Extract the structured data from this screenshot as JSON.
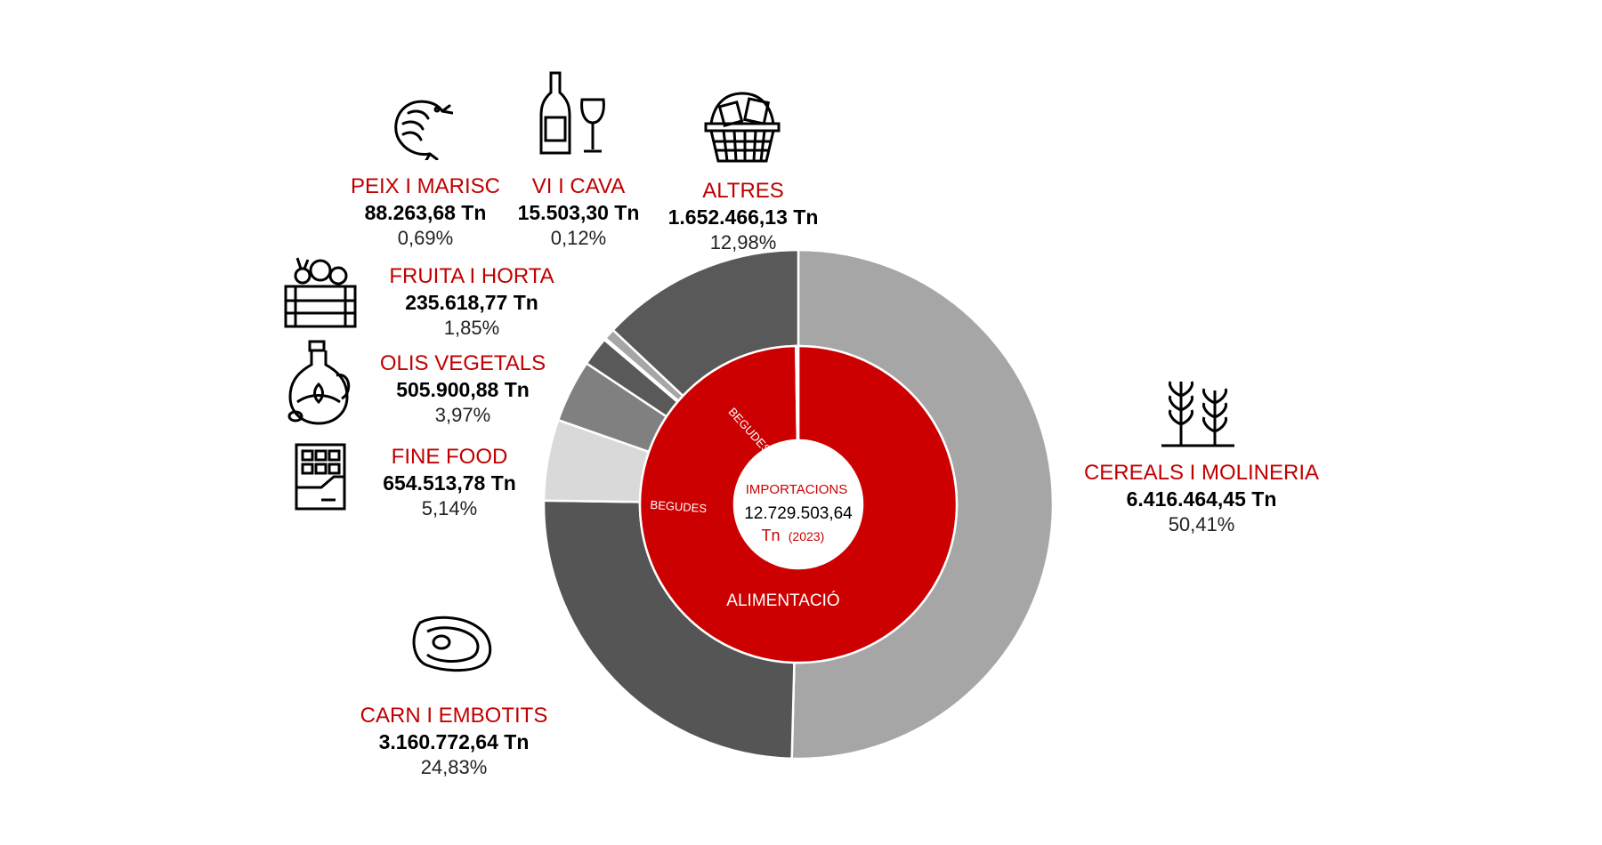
{
  "chart_data": {
    "type": "pie",
    "center": {
      "title": "IMPORTACIONS",
      "total": "12.729.503,64",
      "unit": "Tn",
      "year": "(2023)"
    },
    "inner_ring": [
      {
        "label": "ALIMENTACIÓ",
        "value": 12698736.66,
        "color": "#cc0000"
      },
      {
        "label": "BEGUDES",
        "value": 15503.3,
        "color": "#8b0000"
      },
      {
        "label": "",
        "value": 0,
        "color": "#cc0000"
      },
      {
        "label": "BEGUDES",
        "value": 15263.68,
        "color": "#8b0000"
      }
    ],
    "categories": [
      {
        "key": "cereals",
        "name": "CEREALS I MOLINERIA",
        "tonnes": "6.416.464,45 Tn",
        "percent": "50,41%",
        "value": 6416464.45,
        "color": "#a6a6a6",
        "icon": "wheat-icon"
      },
      {
        "key": "carn",
        "name": "CARN I EMBOTITS",
        "tonnes": "3.160.772,64 Tn",
        "percent": "24,83%",
        "value": 3160772.64,
        "color": "#555555",
        "icon": "steak-icon"
      },
      {
        "key": "fine",
        "name": "FINE FOOD",
        "tonnes": "654.513,78 Tn",
        "percent": "5,14%",
        "value": 654513.78,
        "color": "#d9d9d9",
        "icon": "chocolate-icon"
      },
      {
        "key": "olis",
        "name": "OLIS VEGETALS",
        "tonnes": "505.900,88 Tn",
        "percent": "3,97%",
        "value": 505900.88,
        "color": "#808080",
        "icon": "oil-bottle-icon"
      },
      {
        "key": "fruita",
        "name": "FRUITA I HORTA",
        "tonnes": "235.618,77 Tn",
        "percent": "1,85%",
        "value": 235618.77,
        "color": "#595959",
        "icon": "vegetable-crate-icon"
      },
      {
        "key": "vi",
        "name": "VI I CAVA",
        "tonnes": "15.503,30 Tn",
        "percent": "0,12%",
        "value": 15503.3,
        "color": "#d9d9d9",
        "icon": "wine-icon"
      },
      {
        "key": "peix",
        "name": "PEIX I MARISC",
        "tonnes": "88.263,68 Tn",
        "percent": "0,69%",
        "value": 88263.68,
        "color": "#a6a6a6",
        "icon": "shrimp-icon"
      },
      {
        "key": "altres",
        "name": "ALTRES",
        "tonnes": "1.652.466,13 Tn",
        "percent": "12,98%",
        "value": 1652466.13,
        "color": "#595959",
        "icon": "basket-icon"
      }
    ],
    "colors": {
      "accent": "#c00000",
      "inner": "#cc0000",
      "inner_dark": "#8b0000"
    }
  }
}
